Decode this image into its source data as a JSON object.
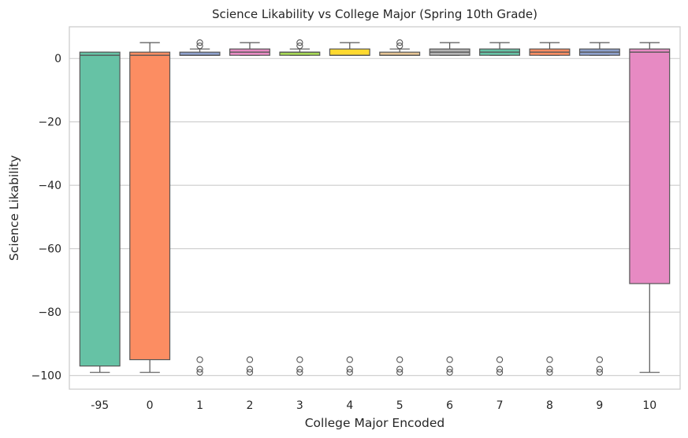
{
  "chart_data": {
    "type": "box",
    "title": "Science Likability vs College Major (Spring 10th Grade)",
    "xlabel": "College Major Encoded",
    "ylabel": "Science Likability",
    "ylim": [
      -104.3,
      10
    ],
    "yticks": [
      0,
      -20,
      -40,
      -60,
      -80,
      -100
    ],
    "ytick_labels": [
      "0",
      "−20",
      "−40",
      "−60",
      "−80",
      "−100"
    ],
    "grid": true,
    "categories": [
      "-95",
      "0",
      "1",
      "2",
      "3",
      "4",
      "5",
      "6",
      "7",
      "8",
      "9",
      "10"
    ],
    "boxes": [
      {
        "label": "-95",
        "color": "#66c2a5",
        "whislo": -99,
        "q1": -97,
        "med": 1,
        "q3": 2,
        "whishi": 2,
        "fliers": []
      },
      {
        "label": "0",
        "color": "#fc8d62",
        "whislo": -99,
        "q1": -95,
        "med": 1,
        "q3": 2,
        "whishi": 5,
        "fliers": []
      },
      {
        "label": "1",
        "color": "#8da0cb",
        "whislo": 1,
        "q1": 1,
        "med": 1,
        "q3": 2,
        "whishi": 3,
        "fliers": [
          4,
          5,
          -95,
          -98,
          -99
        ]
      },
      {
        "label": "2",
        "color": "#e78ac3",
        "whislo": 1,
        "q1": 1,
        "med": 2,
        "q3": 3,
        "whishi": 5,
        "fliers": [
          -95,
          -98,
          -99
        ]
      },
      {
        "label": "3",
        "color": "#a6d854",
        "whislo": 1,
        "q1": 1,
        "med": 2,
        "q3": 2,
        "whishi": 3,
        "fliers": [
          4,
          5,
          -95,
          -98,
          -99
        ]
      },
      {
        "label": "4",
        "color": "#ffd92f",
        "whislo": 1,
        "q1": 1,
        "med": 1,
        "q3": 3,
        "whishi": 5,
        "fliers": [
          -95,
          -98,
          -99
        ]
      },
      {
        "label": "5",
        "color": "#e5c494",
        "whislo": 1,
        "q1": 1,
        "med": 1,
        "q3": 2,
        "whishi": 3,
        "fliers": [
          4,
          5,
          -95,
          -98,
          -99
        ]
      },
      {
        "label": "6",
        "color": "#b3b3b3",
        "whislo": 1,
        "q1": 1,
        "med": 2,
        "q3": 3,
        "whishi": 5,
        "fliers": [
          -95,
          -98,
          -99
        ]
      },
      {
        "label": "7",
        "color": "#66c2a5",
        "whislo": 1,
        "q1": 1,
        "med": 2,
        "q3": 3,
        "whishi": 5,
        "fliers": [
          -95,
          -98,
          -99
        ]
      },
      {
        "label": "8",
        "color": "#fc8d62",
        "whislo": 1,
        "q1": 1,
        "med": 2,
        "q3": 3,
        "whishi": 5,
        "fliers": [
          -95,
          -98,
          -99
        ]
      },
      {
        "label": "9",
        "color": "#8da0cb",
        "whislo": 1,
        "q1": 1,
        "med": 2,
        "q3": 3,
        "whishi": 5,
        "fliers": [
          -95,
          -98,
          -99
        ]
      },
      {
        "label": "10",
        "color": "#e78ac3",
        "whislo": -99,
        "q1": -71,
        "med": 2,
        "q3": 3,
        "whishi": 5,
        "fliers": []
      }
    ]
  }
}
